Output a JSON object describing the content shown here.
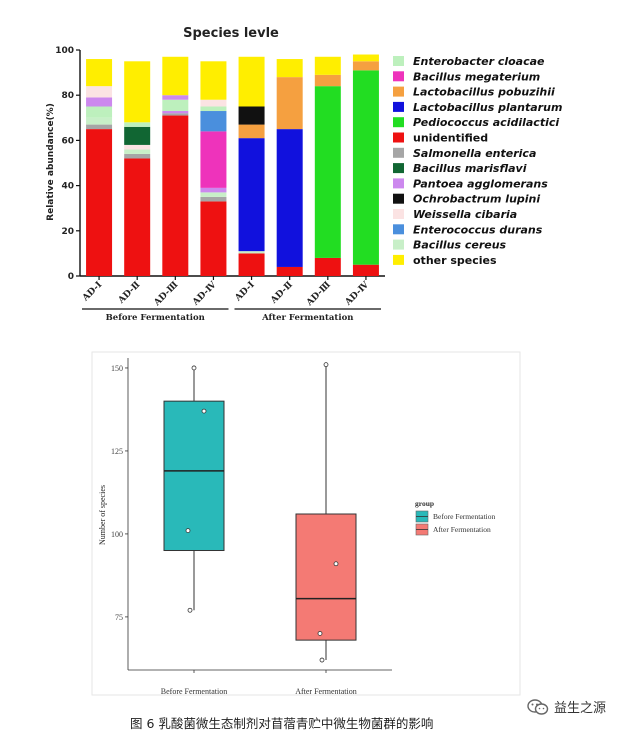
{
  "chart_data": [
    {
      "type": "bar",
      "stacked": true,
      "title": "Species levle",
      "ylabel": "Relative abundance(%)",
      "ylim": [
        0,
        100
      ],
      "yticks": [
        0,
        20,
        40,
        60,
        80,
        100
      ],
      "categories": [
        "AD-Ⅰ",
        "AD-Ⅱ",
        "AD-Ⅲ",
        "AD-Ⅳ",
        "AD-Ⅰ",
        "AD-Ⅱ",
        "AD-Ⅲ",
        "AD-Ⅳ"
      ],
      "groups": [
        {
          "label": "Before Fermentation",
          "from": 0,
          "to": 3
        },
        {
          "label": "After Fermentation",
          "from": 4,
          "to": 7
        }
      ],
      "legend_position": "right",
      "series": [
        {
          "name": "unidentified",
          "color": "#ee1111",
          "values": [
            65,
            52,
            71,
            33,
            10,
            4,
            8,
            5
          ]
        },
        {
          "name": "Salmonella enterica",
          "color": "#a6a6a6",
          "values": [
            2,
            2,
            1,
            2,
            0,
            0,
            0,
            0
          ]
        },
        {
          "name": "Bacillus cereus",
          "color": "#c8efc8",
          "values": [
            3,
            2,
            0,
            2,
            1,
            0,
            0,
            0
          ]
        },
        {
          "name": "Pantoea agglomerans",
          "color": "#cc88ee",
          "values": [
            0,
            0,
            1,
            2,
            0,
            0,
            0,
            0
          ]
        },
        {
          "name": "Weissella cibaria",
          "color": "#fbe3e3",
          "values": [
            0,
            2,
            0,
            0,
            0,
            0,
            0,
            0
          ]
        },
        {
          "name": "Bacillus megaterium",
          "color": "#ee33bb",
          "values": [
            0,
            0,
            0,
            25,
            0,
            0,
            0,
            0
          ]
        },
        {
          "name": "Enterococcus durans",
          "color": "#4a8fdd",
          "values": [
            0,
            0,
            0,
            9,
            0,
            0,
            0,
            0
          ]
        },
        {
          "name": "Lactobacillus plantarum",
          "color": "#1111dd",
          "values": [
            0,
            0,
            0,
            0,
            50,
            61,
            0,
            0
          ]
        },
        {
          "name": "Pediococcus acidilactici",
          "color": "#22dd22",
          "values": [
            0,
            0,
            0,
            0,
            0,
            0,
            76,
            86
          ]
        },
        {
          "name": "Lactobacillus pobuzihii",
          "color": "#f5a040",
          "values": [
            0,
            0,
            0,
            0,
            6,
            23,
            5,
            4
          ]
        },
        {
          "name": "Bacillus marisflavi",
          "color": "#116633",
          "values": [
            0,
            8,
            0,
            0,
            0,
            0,
            0,
            0
          ]
        },
        {
          "name": "Ochrobactrum lupini",
          "color": "#111111",
          "values": [
            0,
            0,
            0,
            0,
            8,
            0,
            0,
            0
          ]
        },
        {
          "name": "Enterobacter cloacae",
          "color": "#bdf0bd",
          "values": [
            5,
            2,
            5,
            2,
            0,
            0,
            0,
            0
          ]
        },
        {
          "name": "Pantoea agglomerans (2)",
          "color": "#cc88ee",
          "values": [
            4,
            0,
            2,
            0,
            0,
            0,
            0,
            0
          ]
        },
        {
          "name": "Weissella cibaria (2)",
          "color": "#fbe3e3",
          "values": [
            5,
            0,
            0,
            3,
            0,
            0,
            0,
            0
          ]
        },
        {
          "name": "other species",
          "color": "#ffee00",
          "values": [
            12,
            27,
            17,
            17,
            22,
            8,
            8,
            3
          ]
        }
      ],
      "legend": [
        {
          "name": "Enterobacter cloacae",
          "color": "#bdf0bd",
          "italic": true
        },
        {
          "name": "Bacillus megaterium",
          "color": "#ee33bb",
          "italic": true
        },
        {
          "name": "Lactobacillus pobuzihii",
          "color": "#f5a040",
          "italic": true
        },
        {
          "name": "Lactobacillus plantarum",
          "color": "#1111dd",
          "italic": true
        },
        {
          "name": "Pediococcus acidilactici",
          "color": "#22dd22",
          "italic": true
        },
        {
          "name": "unidentified",
          "color": "#ee1111",
          "italic": false
        },
        {
          "name": "Salmonella enterica",
          "color": "#a6a6a6",
          "italic": true
        },
        {
          "name": "Bacillus marisflavi",
          "color": "#116633",
          "italic": true
        },
        {
          "name": "Pantoea agglomerans",
          "color": "#cc88ee",
          "italic": true
        },
        {
          "name": "Ochrobactrum lupini",
          "color": "#111111",
          "italic": true
        },
        {
          "name": "Weissella cibaria",
          "color": "#fbe3e3",
          "italic": true
        },
        {
          "name": "Enterococcus durans",
          "color": "#4a8fdd",
          "italic": true
        },
        {
          "name": "Bacillus cereus",
          "color": "#c8efc8",
          "italic": true
        },
        {
          "name": "other species",
          "color": "#ffee00",
          "italic": false
        }
      ]
    },
    {
      "type": "box",
      "ylabel": "Number of species",
      "yticks": [
        75,
        100,
        125,
        150
      ],
      "ylim": [
        59,
        153
      ],
      "legend_title": "group",
      "legend_position": "right",
      "categories": [
        "Before Fermentation",
        "After Fermentation"
      ],
      "boxes": [
        {
          "name": "Before Fermentation",
          "color": "#29b9b9",
          "min": 77,
          "q1": 95,
          "median": 119,
          "q3": 140,
          "max": 150,
          "points": [
            150,
            137,
            101,
            77
          ]
        },
        {
          "name": "After Fermentation",
          "color": "#f47a74",
          "min": 62,
          "q1": 68,
          "median": 80.5,
          "q3": 106,
          "max": 151,
          "points": [
            151,
            91,
            70,
            62
          ]
        }
      ]
    }
  ],
  "caption": "图 6    乳酸菌微生态制剂对苜蓿青贮中微生物菌群的影响",
  "watermark": "益生之源"
}
